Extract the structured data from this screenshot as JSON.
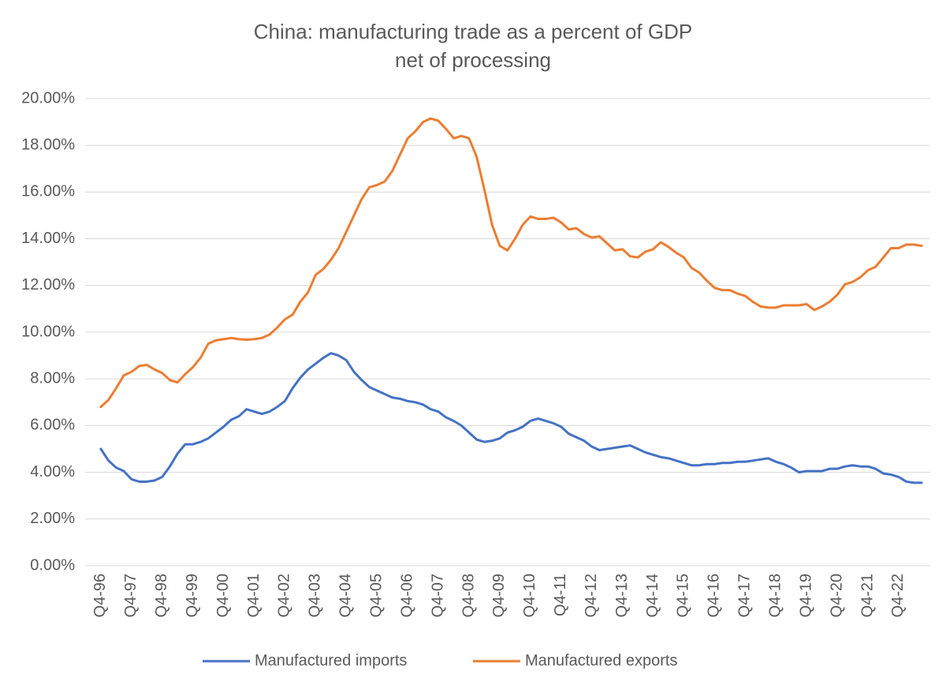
{
  "chart_data": {
    "type": "line",
    "title": "China: manufacturing trade as a percent of GDP",
    "subtitle": "net of processing",
    "categories": [
      "Q4-96",
      null,
      null,
      null,
      "Q4-97",
      null,
      null,
      null,
      "Q4-98",
      null,
      null,
      null,
      "Q4-99",
      null,
      null,
      null,
      "Q4-00",
      null,
      null,
      null,
      "Q4-01",
      null,
      null,
      null,
      "Q4-02",
      null,
      null,
      null,
      "Q4-03",
      null,
      null,
      null,
      "Q4-04",
      null,
      null,
      null,
      "Q4-05",
      null,
      null,
      null,
      "Q4-06",
      null,
      null,
      null,
      "Q4-07",
      null,
      null,
      null,
      "Q4-08",
      null,
      null,
      null,
      "Q4-09",
      null,
      null,
      null,
      "Q4-10",
      null,
      null,
      null,
      "Q4-11",
      null,
      null,
      null,
      "Q4-12",
      null,
      null,
      null,
      "Q4-13",
      null,
      null,
      null,
      "Q4-14",
      null,
      null,
      null,
      "Q4-15",
      null,
      null,
      null,
      "Q4-16",
      null,
      null,
      null,
      "Q4-17",
      null,
      null,
      null,
      "Q4-18",
      null,
      null,
      null,
      "Q4-19",
      null,
      null,
      null,
      "Q4-20",
      null,
      null,
      null,
      "Q4-21",
      null,
      null,
      null,
      "Q4-22",
      null,
      null,
      null
    ],
    "series": [
      {
        "name": "Manufactured imports",
        "color": "#4472c4",
        "values": [
          5.0,
          4.5,
          4.2,
          4.05,
          3.7,
          3.6,
          3.6,
          3.65,
          3.8,
          4.25,
          4.8,
          5.2,
          5.2,
          5.3,
          5.45,
          5.7,
          5.95,
          6.25,
          6.4,
          6.7,
          6.6,
          6.5,
          6.6,
          6.8,
          7.05,
          7.6,
          8.05,
          8.4,
          8.65,
          8.9,
          9.1,
          9.0,
          8.8,
          8.3,
          7.95,
          7.65,
          7.5,
          7.35,
          7.2,
          7.15,
          7.05,
          7.0,
          6.9,
          6.7,
          6.6,
          6.35,
          6.2,
          6.0,
          5.7,
          5.4,
          5.3,
          5.35,
          5.45,
          5.7,
          5.8,
          5.95,
          6.2,
          6.3,
          6.2,
          6.1,
          5.95,
          5.65,
          5.5,
          5.35,
          5.1,
          4.95,
          5.0,
          5.05,
          5.1,
          5.15,
          5.0,
          4.85,
          4.75,
          4.65,
          4.6,
          4.5,
          4.4,
          4.3,
          4.3,
          4.35,
          4.35,
          4.4,
          4.4,
          4.45,
          4.45,
          4.5,
          4.55,
          4.6,
          4.45,
          4.35,
          4.2,
          4.0,
          4.05,
          4.05,
          4.05,
          4.15,
          4.15,
          4.25,
          4.3,
          4.25,
          4.25,
          4.15,
          3.95,
          3.9,
          3.8,
          3.6,
          3.55,
          3.55
        ]
      },
      {
        "name": "Manufactured exports",
        "color": "#ed7d31",
        "values": [
          6.8,
          7.1,
          7.6,
          8.15,
          8.3,
          8.55,
          8.6,
          8.4,
          8.25,
          7.95,
          7.85,
          8.2,
          8.5,
          8.9,
          9.5,
          9.65,
          9.7,
          9.75,
          9.7,
          9.68,
          9.7,
          9.75,
          9.9,
          10.2,
          10.55,
          10.75,
          11.3,
          11.7,
          12.45,
          12.7,
          13.1,
          13.6,
          14.3,
          15.0,
          15.7,
          16.2,
          16.3,
          16.45,
          16.9,
          17.6,
          18.3,
          18.6,
          19.0,
          19.15,
          19.05,
          18.7,
          18.3,
          18.4,
          18.3,
          17.5,
          16.1,
          14.6,
          13.7,
          13.5,
          14.0,
          14.6,
          14.95,
          14.85,
          14.85,
          14.9,
          14.7,
          14.4,
          14.45,
          14.2,
          14.05,
          14.1,
          13.8,
          13.5,
          13.55,
          13.25,
          13.2,
          13.45,
          13.55,
          13.85,
          13.65,
          13.4,
          13.2,
          12.75,
          12.55,
          12.2,
          11.9,
          11.8,
          11.8,
          11.65,
          11.55,
          11.3,
          11.1,
          11.05,
          11.05,
          11.15,
          11.15,
          11.15,
          11.2,
          10.95,
          11.1,
          11.3,
          11.6,
          12.05,
          12.15,
          12.35,
          12.65,
          12.8,
          13.2,
          13.6,
          13.6,
          13.75,
          13.75,
          13.7
        ]
      }
    ],
    "ylim": [
      0,
      20
    ],
    "yticks": [
      {
        "value": 0,
        "label": "0.00%"
      },
      {
        "value": 2,
        "label": "2.00%"
      },
      {
        "value": 4,
        "label": "4.00%"
      },
      {
        "value": 6,
        "label": "6.00%"
      },
      {
        "value": 8,
        "label": "8.00%"
      },
      {
        "value": 10,
        "label": "10.00%"
      },
      {
        "value": 12,
        "label": "12.00%"
      },
      {
        "value": 14,
        "label": "14.00%"
      },
      {
        "value": 16,
        "label": "16.00%"
      },
      {
        "value": 18,
        "label": "18.00%"
      },
      {
        "value": 20,
        "label": "20.00%"
      }
    ],
    "grid": true,
    "legend": "bottom"
  }
}
